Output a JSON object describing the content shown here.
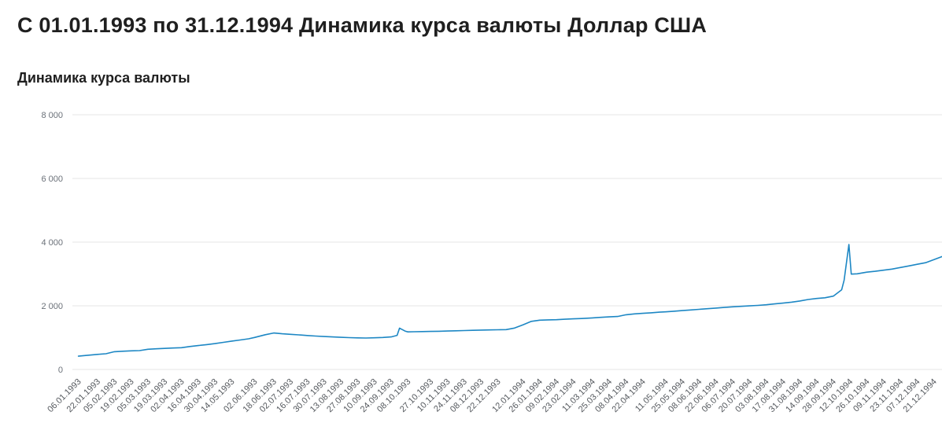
{
  "page": {
    "title": "С 01.01.1993 по 31.12.1994 Динамика курса валюты Доллар США",
    "subtitle": "Динамика курса валюты"
  },
  "chart_data": {
    "type": "line",
    "title": "Динамика курса валюты",
    "series_name": "Доллар США",
    "x_range": [
      "01.01.1993",
      "31.12.1994"
    ],
    "ylim": [
      0,
      8000
    ],
    "grid": true,
    "legend": "none",
    "line_color": "#1d87c4",
    "grid_color": "#e4e4e4",
    "y_ticks": [
      {
        "value": 0,
        "label": "0"
      },
      {
        "value": 2000,
        "label": "2 000"
      },
      {
        "value": 4000,
        "label": "4 000"
      },
      {
        "value": 6000,
        "label": "6 000"
      },
      {
        "value": 8000,
        "label": "8 000"
      }
    ],
    "x_tick_labels": [
      "06.01.1993",
      "22.01.1993",
      "05.02.1993",
      "19.02.1993",
      "05.03.1993",
      "19.03.1993",
      "02.04.1993",
      "16.04.1993",
      "30.04.1993",
      "14.05.1993",
      "02.06.1993",
      "18.06.1993",
      "02.07.1993",
      "16.07.1993",
      "30.07.1993",
      "13.08.1993",
      "27.08.1993",
      "10.09.1993",
      "24.09.1993",
      "08.10.1993",
      "27.10.1993",
      "10.11.1993",
      "24.11.1993",
      "08.12.1993",
      "22.12.1993",
      "12.01.1994",
      "26.01.1994",
      "09.02.1994",
      "23.02.1994",
      "11.03.1994",
      "25.03.1994",
      "08.04.1994",
      "22.04.1994",
      "11.05.1994",
      "25.05.1994",
      "08.06.1994",
      "22.06.1994",
      "06.07.1994",
      "20.07.1994",
      "03.08.1994",
      "17.08.1994",
      "31.08.1994",
      "14.09.1994",
      "28.09.1994",
      "12.10.1994",
      "26.10.1994",
      "09.11.1994",
      "23.11.1994",
      "07.12.1994",
      "21.12.1994"
    ],
    "points": [
      [
        "06.01.1993",
        417
      ],
      [
        "13.01.1993",
        442
      ],
      [
        "22.01.1993",
        474
      ],
      [
        "29.01.1993",
        493
      ],
      [
        "05.02.1993",
        559
      ],
      [
        "12.02.1993",
        572
      ],
      [
        "19.02.1993",
        585
      ],
      [
        "26.02.1993",
        593
      ],
      [
        "05.03.1993",
        635
      ],
      [
        "12.03.1993",
        650
      ],
      [
        "19.03.1993",
        662
      ],
      [
        "26.03.1993",
        673
      ],
      [
        "02.04.1993",
        684
      ],
      [
        "09.04.1993",
        721
      ],
      [
        "16.04.1993",
        750
      ],
      [
        "23.04.1993",
        781
      ],
      [
        "30.04.1993",
        812
      ],
      [
        "07.05.1993",
        851
      ],
      [
        "14.05.1993",
        892
      ],
      [
        "21.05.1993",
        926
      ],
      [
        "28.05.1993",
        962
      ],
      [
        "02.06.1993",
        1005
      ],
      [
        "11.06.1993",
        1092
      ],
      [
        "18.06.1993",
        1145
      ],
      [
        "25.06.1993",
        1121
      ],
      [
        "02.07.1993",
        1104
      ],
      [
        "09.07.1993",
        1086
      ],
      [
        "16.07.1993",
        1066
      ],
      [
        "23.07.1993",
        1049
      ],
      [
        "30.07.1993",
        1034
      ],
      [
        "06.08.1993",
        1021
      ],
      [
        "13.08.1993",
        1011
      ],
      [
        "20.08.1993",
        1001
      ],
      [
        "27.08.1993",
        992
      ],
      [
        "03.09.1993",
        988
      ],
      [
        "10.09.1993",
        996
      ],
      [
        "17.09.1993",
        1006
      ],
      [
        "24.09.1993",
        1021
      ],
      [
        "29.09.1993",
        1072
      ],
      [
        "01.10.1993",
        1299
      ],
      [
        "06.10.1993",
        1199
      ],
      [
        "08.10.1993",
        1181
      ],
      [
        "13.10.1993",
        1186
      ],
      [
        "20.10.1993",
        1191
      ],
      [
        "27.10.1993",
        1195
      ],
      [
        "03.11.1993",
        1201
      ],
      [
        "10.11.1993",
        1208
      ],
      [
        "17.11.1993",
        1215
      ],
      [
        "24.11.1993",
        1221
      ],
      [
        "01.12.1993",
        1229
      ],
      [
        "08.12.1993",
        1236
      ],
      [
        "15.12.1993",
        1242
      ],
      [
        "22.12.1993",
        1247
      ],
      [
        "29.12.1993",
        1253
      ],
      [
        "05.01.1994",
        1301
      ],
      [
        "12.01.1994",
        1402
      ],
      [
        "19.01.1994",
        1512
      ],
      [
        "26.01.1994",
        1549
      ],
      [
        "02.02.1994",
        1558
      ],
      [
        "09.02.1994",
        1563
      ],
      [
        "16.02.1994",
        1577
      ],
      [
        "23.02.1994",
        1589
      ],
      [
        "02.03.1994",
        1599
      ],
      [
        "11.03.1994",
        1619
      ],
      [
        "18.03.1994",
        1636
      ],
      [
        "25.03.1994",
        1651
      ],
      [
        "01.04.1994",
        1663
      ],
      [
        "08.04.1994",
        1719
      ],
      [
        "15.04.1994",
        1746
      ],
      [
        "22.04.1994",
        1763
      ],
      [
        "29.04.1994",
        1781
      ],
      [
        "06.05.1994",
        1799
      ],
      [
        "11.05.1994",
        1811
      ],
      [
        "18.05.1994",
        1829
      ],
      [
        "25.05.1994",
        1849
      ],
      [
        "01.06.1994",
        1869
      ],
      [
        "08.06.1994",
        1889
      ],
      [
        "15.06.1994",
        1909
      ],
      [
        "22.06.1994",
        1929
      ],
      [
        "29.06.1994",
        1949
      ],
      [
        "06.07.1994",
        1967
      ],
      [
        "13.07.1994",
        1983
      ],
      [
        "20.07.1994",
        1997
      ],
      [
        "27.07.1994",
        2013
      ],
      [
        "03.08.1994",
        2033
      ],
      [
        "10.08.1994",
        2059
      ],
      [
        "17.08.1994",
        2083
      ],
      [
        "24.08.1994",
        2113
      ],
      [
        "31.08.1994",
        2151
      ],
      [
        "07.09.1994",
        2197
      ],
      [
        "14.09.1994",
        2229
      ],
      [
        "21.09.1994",
        2253
      ],
      [
        "28.09.1994",
        2303
      ],
      [
        "05.10.1994",
        2503
      ],
      [
        "07.10.1994",
        2799
      ],
      [
        "11.10.1994",
        3926
      ],
      [
        "13.10.1994",
        2994
      ],
      [
        "18.10.1994",
        3005
      ],
      [
        "26.10.1994",
        3057
      ],
      [
        "02.11.1994",
        3083
      ],
      [
        "09.11.1994",
        3119
      ],
      [
        "16.11.1994",
        3153
      ],
      [
        "23.11.1994",
        3203
      ],
      [
        "30.11.1994",
        3253
      ],
      [
        "07.12.1994",
        3303
      ],
      [
        "14.12.1994",
        3353
      ],
      [
        "21.12.1994",
        3452
      ],
      [
        "28.12.1994",
        3550
      ]
    ]
  }
}
